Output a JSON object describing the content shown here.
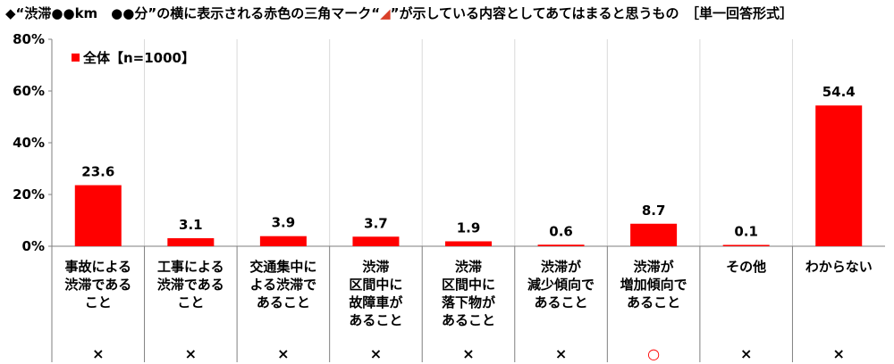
{
  "title": {
    "before": "◆“渋滞●●km　●●分”の横に表示される赤色の三角マーク“",
    "mark": "◢",
    "after": "”が示している内容としてあてはまると思うもの　［単一回答形式］"
  },
  "chart_data": {
    "type": "bar",
    "categories": [
      [
        "事故による",
        "渋滞である",
        "こと"
      ],
      [
        "工事による",
        "渋滞である",
        "こと"
      ],
      [
        "交通集中に",
        "よる渋滞で",
        "あること"
      ],
      [
        "渋滞",
        "区間中に",
        "故障車が",
        "あること"
      ],
      [
        "渋滞",
        "区間中に",
        "落下物が",
        "あること"
      ],
      [
        "渋滞が",
        "減少傾向で",
        "あること"
      ],
      [
        "渋滞が",
        "増加傾向で",
        "あること"
      ],
      [
        "その他"
      ],
      [
        "わからない"
      ]
    ],
    "series": [
      {
        "name": "全体【n=1000】",
        "values": [
          23.6,
          3.1,
          3.9,
          3.7,
          1.9,
          0.6,
          8.7,
          0.1,
          54.4
        ]
      }
    ],
    "value_labels": [
      "23.6",
      "3.1",
      "3.9",
      "3.7",
      "1.9",
      "0.6",
      "8.7",
      "0.1",
      "54.4"
    ],
    "answer_marks": [
      "×",
      "×",
      "×",
      "×",
      "×",
      "×",
      "○",
      "×",
      "×"
    ],
    "ylim": [
      0,
      80
    ],
    "yticks": [
      0,
      20,
      40,
      60,
      80
    ],
    "ytick_labels": [
      "0%",
      "20%",
      "40%",
      "60%",
      "80%"
    ],
    "grid": "vertical-separators",
    "legend": "top-left",
    "colors": {
      "bar": "#ff0000",
      "mark_correct": "#ff0000",
      "mark_wrong": "#000000",
      "axis": "#7f7f7f",
      "grid": "#d9d9d9"
    }
  }
}
